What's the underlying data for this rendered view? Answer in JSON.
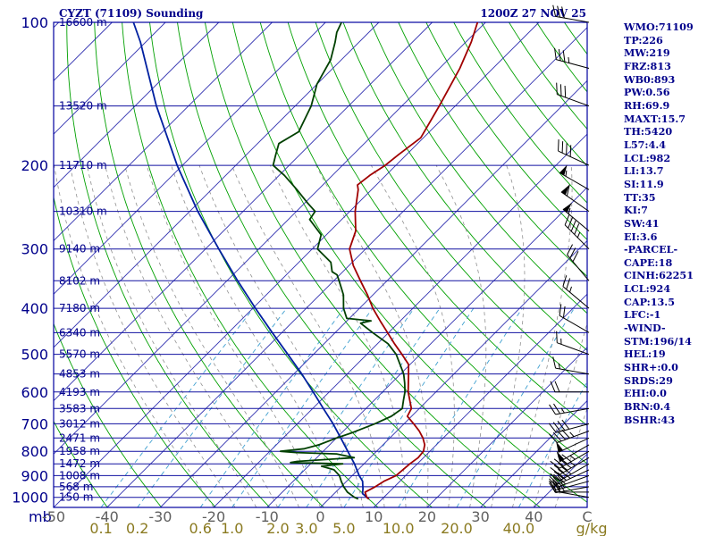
{
  "header": {
    "title": "CYZT (71109) Sounding",
    "datetime": "1200Z 27 NOV 25"
  },
  "indices": [
    "WMO:71109",
    "TP:226",
    "MW:219",
    "FRZ:813",
    "WB0:893",
    "PW:0.56",
    "RH:69.9",
    "MAXT:15.7",
    "TH:5420",
    "L57:4.4",
    "LCL:982",
    "LI:13.7",
    "SI:11.9",
    "TT:35",
    "KI:7",
    "SW:41",
    "EI:3.6",
    "-PARCEL-",
    "CAPE:18",
    "CINH:62251",
    "LCL:924",
    "CAP:13.5",
    "LFC:-1",
    "-WIND-",
    "STM:196/14",
    "HEL:19",
    "SHR+:0.0",
    "SRDS:29",
    "EHI:0.0",
    "BRN:0.4",
    "BSHR:43"
  ],
  "colors": {
    "frame": "#0000a0",
    "isobar": "#1010a0",
    "isotherm": "#3030b0",
    "dry_adiabat": "#00a000",
    "moist_adiabat": "#909090",
    "mixing_ratio": "#40a0d0",
    "temperature": "#a00000",
    "dewpoint": "#004000",
    "parcel": "#0020a0",
    "height_label": "#00008b",
    "pressure_label": "#00008b",
    "temp_label": "#606060",
    "mixing_label": "#8a7a20",
    "wind": "#000000"
  },
  "chart_data": {
    "type": "skew-t log-p sounding",
    "y_axis": {
      "pressure_labels": [
        "100",
        "200",
        "300",
        "400",
        "500",
        "600",
        "700",
        "800",
        "900",
        "1000"
      ],
      "pressure_label_values": [
        100,
        200,
        300,
        400,
        500,
        600,
        700,
        800,
        900,
        1000
      ],
      "pressure_range": [
        100,
        1050
      ],
      "log_scale": true,
      "units_label": "mb"
    },
    "x_axis": {
      "temp_labels": [
        "-50",
        "-40",
        "-30",
        "-20",
        "-10",
        "0",
        "10",
        "20",
        "30",
        "40"
      ],
      "temp_label_values": [
        -50,
        -40,
        -30,
        -20,
        -10,
        0,
        10,
        20,
        30,
        40
      ],
      "units_label": "C",
      "temp_range_at_bottom": [
        -50,
        50
      ]
    },
    "mixing_ratio_axis": {
      "labels": [
        "0.1",
        "0.2",
        "0.6",
        "1.0",
        "2.0",
        "3.0",
        "5.0",
        "10.0",
        "20.0",
        "40.0"
      ],
      "values": [
        0.1,
        0.2,
        0.6,
        1.0,
        2.0,
        3.0,
        5.0,
        10.0,
        20.0,
        40.0
      ],
      "units_label": "g/kg"
    },
    "height_levels": [
      {
        "label": "16600 m",
        "p": 100
      },
      {
        "label": "13520 m",
        "p": 150
      },
      {
        "label": "11710 m",
        "p": 200
      },
      {
        "label": "10310 m",
        "p": 250
      },
      {
        "label": "9140 m",
        "p": 300
      },
      {
        "label": "8102 m",
        "p": 350
      },
      {
        "label": "7180 m",
        "p": 400
      },
      {
        "label": "6340 m",
        "p": 450
      },
      {
        "label": "5570 m",
        "p": 500
      },
      {
        "label": "4853 m",
        "p": 550
      },
      {
        "label": "4193 m",
        "p": 600
      },
      {
        "label": "3583 m",
        "p": 650
      },
      {
        "label": "3012 m",
        "p": 700
      },
      {
        "label": "2471 m",
        "p": 750
      },
      {
        "label": "1958 m",
        "p": 800
      },
      {
        "label": "1472 m",
        "p": 850
      },
      {
        "label": "1008 m",
        "p": 900
      },
      {
        "label": "568 m",
        "p": 950
      },
      {
        "label": "150 m",
        "p": 1000
      }
    ],
    "temperature": [
      [
        1008,
        7.5
      ],
      [
        1000,
        6.8
      ],
      [
        975,
        5.5
      ],
      [
        950,
        6.4
      ],
      [
        925,
        7.0
      ],
      [
        900,
        8.2
      ],
      [
        850,
        8.6
      ],
      [
        825,
        9.0
      ],
      [
        800,
        8.8
      ],
      [
        775,
        7.8
      ],
      [
        750,
        6.2
      ],
      [
        725,
        4.2
      ],
      [
        700,
        1.8
      ],
      [
        675,
        -0.8
      ],
      [
        650,
        -1.5
      ],
      [
        600,
        -5.2
      ],
      [
        550,
        -8.5
      ],
      [
        525,
        -10.3
      ],
      [
        500,
        -13.4
      ],
      [
        475,
        -16.8
      ],
      [
        450,
        -20.2
      ],
      [
        425,
        -23.8
      ],
      [
        400,
        -27.5
      ],
      [
        375,
        -31.0
      ],
      [
        350,
        -35.0
      ],
      [
        325,
        -39.2
      ],
      [
        300,
        -43.0
      ],
      [
        275,
        -45.2
      ],
      [
        250,
        -49.0
      ],
      [
        225,
        -52.5
      ],
      [
        220,
        -53.5
      ],
      [
        210,
        -53.0
      ],
      [
        200,
        -52.0
      ],
      [
        190,
        -51.5
      ],
      [
        175,
        -50.5
      ],
      [
        150,
        -53.0
      ],
      [
        125,
        -56.2
      ],
      [
        110,
        -59.0
      ],
      [
        100,
        -61.5
      ]
    ],
    "dewpoint": [
      [
        1008,
        5.5
      ],
      [
        1000,
        4.5
      ],
      [
        975,
        2.2
      ],
      [
        950,
        0.5
      ],
      [
        925,
        -1.0
      ],
      [
        900,
        -2.4
      ],
      [
        875,
        -4.5
      ],
      [
        860,
        -7.5
      ],
      [
        850,
        -4.0
      ],
      [
        845,
        -14.0
      ],
      [
        840,
        -13.0
      ],
      [
        825,
        -3.0
      ],
      [
        810,
        -7.0
      ],
      [
        805,
        -14.8
      ],
      [
        800,
        -18.0
      ],
      [
        790,
        -14.0
      ],
      [
        775,
        -12.0
      ],
      [
        750,
        -10.0
      ],
      [
        730,
        -8.0
      ],
      [
        700,
        -5.5
      ],
      [
        675,
        -3.8
      ],
      [
        650,
        -3.2
      ],
      [
        625,
        -4.5
      ],
      [
        600,
        -5.8
      ],
      [
        575,
        -7.5
      ],
      [
        550,
        -9.4
      ],
      [
        500,
        -14.5
      ],
      [
        475,
        -18.0
      ],
      [
        450,
        -23.0
      ],
      [
        430,
        -27.0
      ],
      [
        425,
        -25.5
      ],
      [
        420,
        -30.5
      ],
      [
        400,
        -33.0
      ],
      [
        375,
        -35.5
      ],
      [
        350,
        -39.0
      ],
      [
        340,
        -40.5
      ],
      [
        335,
        -42.0
      ],
      [
        320,
        -44.0
      ],
      [
        300,
        -49.0
      ],
      [
        280,
        -51.0
      ],
      [
        260,
        -56.0
      ],
      [
        250,
        -56.5
      ],
      [
        240,
        -59.5
      ],
      [
        225,
        -64.0
      ],
      [
        210,
        -69.0
      ],
      [
        200,
        -73.0
      ],
      [
        190,
        -74.5
      ],
      [
        180,
        -76.0
      ],
      [
        170,
        -74.5
      ],
      [
        150,
        -77.0
      ],
      [
        135,
        -80.0
      ],
      [
        120,
        -82.0
      ],
      [
        110,
        -84.5
      ],
      [
        105,
        -86.0
      ],
      [
        100,
        -87.0
      ]
    ],
    "parcel": [
      [
        1008,
        7.5
      ],
      [
        990,
        6.0
      ],
      [
        982,
        5.3
      ],
      [
        960,
        4.5
      ],
      [
        925,
        3.0
      ],
      [
        900,
        1.3
      ],
      [
        850,
        -1.8
      ],
      [
        800,
        -5.4
      ],
      [
        750,
        -9.2
      ],
      [
        700,
        -13.3
      ],
      [
        650,
        -18.0
      ],
      [
        600,
        -23.0
      ],
      [
        550,
        -28.5
      ],
      [
        500,
        -34.8
      ],
      [
        450,
        -41.8
      ],
      [
        400,
        -49.5
      ],
      [
        350,
        -58.0
      ],
      [
        300,
        -67.5
      ],
      [
        250,
        -78.5
      ],
      [
        200,
        -91.0
      ],
      [
        150,
        -106.0
      ],
      [
        110,
        -121.0
      ],
      [
        100,
        -126.0
      ]
    ],
    "winds": [
      {
        "p": 1000,
        "dir": 280,
        "spd": 15
      },
      {
        "p": 975,
        "dir": 270,
        "spd": 20
      },
      {
        "p": 950,
        "dir": 260,
        "spd": 25
      },
      {
        "p": 925,
        "dir": 255,
        "spd": 25
      },
      {
        "p": 900,
        "dir": 250,
        "spd": 30
      },
      {
        "p": 875,
        "dir": 245,
        "spd": 35
      },
      {
        "p": 850,
        "dir": 240,
        "spd": 40
      },
      {
        "p": 825,
        "dir": 240,
        "spd": 45
      },
      {
        "p": 800,
        "dir": 240,
        "spd": 45
      },
      {
        "p": 775,
        "dir": 240,
        "spd": 50
      },
      {
        "p": 750,
        "dir": 245,
        "spd": 50
      },
      {
        "p": 725,
        "dir": 250,
        "spd": 45
      },
      {
        "p": 700,
        "dir": 255,
        "spd": 40
      },
      {
        "p": 650,
        "dir": 260,
        "spd": 25
      },
      {
        "p": 600,
        "dir": 270,
        "spd": 20
      },
      {
        "p": 550,
        "dir": 280,
        "spd": 15
      },
      {
        "p": 500,
        "dir": 290,
        "spd": 15
      },
      {
        "p": 450,
        "dir": 300,
        "spd": 20
      },
      {
        "p": 400,
        "dir": 310,
        "spd": 25
      },
      {
        "p": 350,
        "dir": 320,
        "spd": 30
      },
      {
        "p": 300,
        "dir": 315,
        "spd": 45
      },
      {
        "p": 275,
        "dir": 310,
        "spd": 55
      },
      {
        "p": 250,
        "dir": 305,
        "spd": 60
      },
      {
        "p": 225,
        "dir": 300,
        "spd": 55
      },
      {
        "p": 200,
        "dir": 295,
        "spd": 40
      },
      {
        "p": 150,
        "dir": 290,
        "spd": 30
      },
      {
        "p": 125,
        "dir": 285,
        "spd": 35
      },
      {
        "p": 100,
        "dir": 280,
        "spd": 30
      }
    ],
    "grid": true,
    "legend": "none"
  }
}
